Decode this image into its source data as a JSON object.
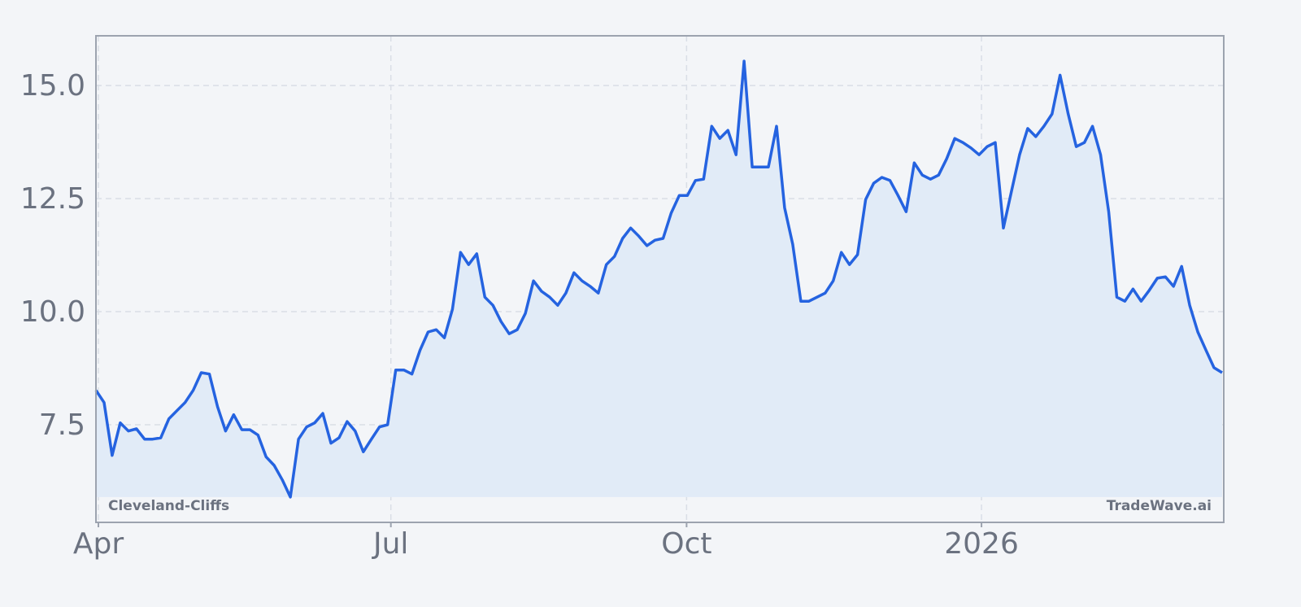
{
  "chart_data": {
    "type": "area-line",
    "annotations": [
      "Cleveland-Cliffs",
      "TradeWave.ai"
    ],
    "values": [
      8.26,
      7.99,
      6.82,
      7.54,
      7.36,
      7.41,
      7.18,
      7.18,
      7.21,
      7.63,
      7.81,
      7.99,
      8.26,
      8.65,
      8.62,
      7.9,
      7.36,
      7.72,
      7.39,
      7.39,
      7.27,
      6.79,
      6.6,
      6.28,
      5.9,
      7.18,
      7.45,
      7.54,
      7.75,
      7.09,
      7.21,
      7.57,
      7.36,
      6.9,
      7.18,
      7.45,
      7.5,
      8.71,
      8.71,
      8.62,
      9.15,
      9.55,
      9.6,
      9.42,
      10.05,
      11.31,
      11.04,
      11.28,
      10.32,
      10.14,
      9.78,
      9.51,
      9.6,
      9.96,
      10.68,
      10.45,
      10.32,
      10.14,
      10.41,
      10.86,
      10.68,
      10.56,
      10.41,
      11.04,
      11.22,
      11.62,
      11.85,
      11.67,
      11.46,
      11.58,
      11.62,
      12.18,
      12.57,
      12.57,
      12.9,
      12.93,
      14.1,
      13.83,
      14.01,
      13.47,
      15.54,
      13.2,
      13.2,
      13.2,
      14.1,
      12.3,
      11.49,
      10.23,
      10.23,
      10.32,
      10.41,
      10.68,
      11.31,
      11.04,
      11.26,
      12.48,
      12.84,
      12.97,
      12.9,
      12.57,
      12.21,
      13.29,
      13.02,
      12.93,
      13.02,
      13.38,
      13.83,
      13.74,
      13.62,
      13.47,
      13.65,
      13.74,
      11.85,
      12.66,
      13.47,
      14.05,
      13.87,
      14.1,
      14.37,
      15.23,
      14.37,
      13.65,
      13.74,
      14.1,
      13.47,
      12.21,
      10.32,
      10.23,
      10.5,
      10.23,
      10.47,
      10.74,
      10.77,
      10.56,
      11.0,
      10.14,
      9.55,
      9.15,
      8.76,
      8.65
    ],
    "color": "#2563e0",
    "fill_color": "#e1ebf7",
    "xlim": [
      0,
      139
    ],
    "xticks": [
      {
        "value": 0.3,
        "label": "Apr"
      },
      {
        "value": 36.4,
        "label": "Jul"
      },
      {
        "value": 72.9,
        "label": "Oct"
      },
      {
        "value": 109.3,
        "label": "2026"
      }
    ],
    "ylim": [
      5.34,
      16.1
    ],
    "yticks": [
      {
        "value": 15,
        "label": "15.0"
      },
      {
        "value": 12.5,
        "label": "12.5"
      },
      {
        "value": 10,
        "label": "10.0"
      },
      7.5
    ],
    "grid": true
  }
}
